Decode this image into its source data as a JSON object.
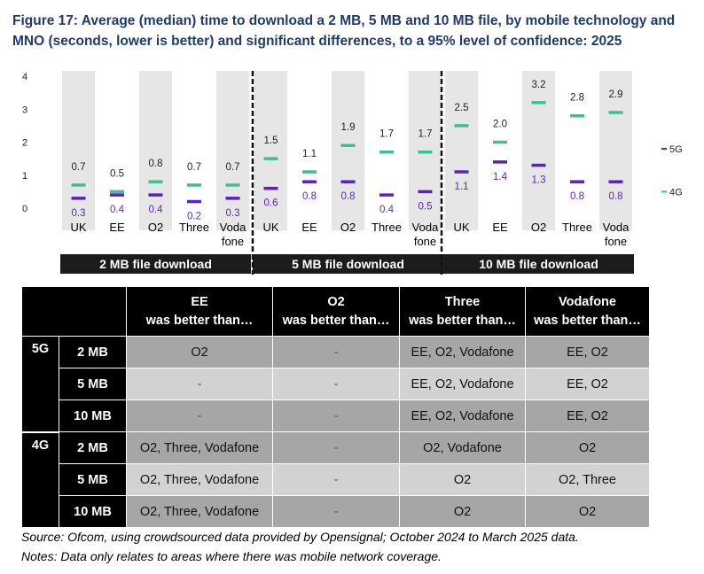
{
  "title": "Figure 17: Average (median) time to download a 2 MB, 5 MB and 10 MB file, by mobile technology and MNO (seconds, lower is better) and significant differences, to a 95% level of confidence: 2025",
  "chart_data": {
    "type": "scatter",
    "marker": "horizontal-dash",
    "y_ticks": [
      "0",
      "1",
      "2",
      "3",
      "4"
    ],
    "ylim": [
      0,
      4
    ],
    "grid": false,
    "legend_position": "right",
    "colors": {
      "5G": "#5a1fc8",
      "4G": "#3cc08e",
      "column_shade": "#e6e6e6",
      "group_bar": "#1c1c1c"
    },
    "series": [
      {
        "name": "5G",
        "color": "#5a1fc8"
      },
      {
        "name": "4G",
        "color": "#3cc08e"
      }
    ],
    "groups": [
      {
        "label": "2 MB file download",
        "operators": [
          "UK",
          "EE",
          "O2",
          "Three",
          "Voda fone"
        ],
        "values_5g": [
          0.3,
          0.4,
          0.4,
          0.2,
          0.3
        ],
        "values_4g": [
          0.7,
          0.5,
          0.8,
          0.7,
          0.7
        ]
      },
      {
        "label": "5 MB file download",
        "operators": [
          "UK",
          "EE",
          "O2",
          "Three",
          "Voda fone"
        ],
        "values_5g": [
          0.6,
          0.8,
          0.8,
          0.4,
          0.5
        ],
        "values_4g": [
          1.5,
          1.1,
          1.9,
          1.7,
          1.7
        ]
      },
      {
        "label": "10 MB file download",
        "operators": [
          "UK",
          "EE",
          "O2",
          "Three",
          "Voda fone"
        ],
        "values_5g": [
          1.1,
          1.4,
          1.3,
          0.8,
          0.8
        ],
        "values_4g": [
          2.5,
          2.0,
          3.2,
          2.8,
          2.9
        ]
      }
    ]
  },
  "table": {
    "headers": [
      {
        "line1": "EE",
        "line2": "was better than…"
      },
      {
        "line1": "O2",
        "line2": "was better than…"
      },
      {
        "line1": "Three",
        "line2": "was better than…"
      },
      {
        "line1": "Vodafone",
        "line2": "was better than…"
      }
    ],
    "rows": [
      {
        "tech": "5G",
        "size": "2 MB",
        "cells": [
          "O2",
          "-",
          "EE, O2, Vodafone",
          "EE, O2"
        ]
      },
      {
        "tech": "",
        "size": "5 MB",
        "cells": [
          "-",
          "-",
          "EE, O2, Vodafone",
          "EE, O2"
        ]
      },
      {
        "tech": "",
        "size": "10 MB",
        "cells": [
          "-",
          "-",
          "EE, O2, Vodafone",
          "EE, O2"
        ]
      },
      {
        "tech": "4G",
        "size": "2 MB",
        "cells": [
          "O2, Three, Vodafone",
          "-",
          "O2, Vodafone",
          "O2"
        ]
      },
      {
        "tech": "",
        "size": "5 MB",
        "cells": [
          "O2, Three, Vodafone",
          "-",
          "O2",
          "O2, Three"
        ]
      },
      {
        "tech": "",
        "size": "10 MB",
        "cells": [
          "O2, Three, Vodafone",
          "-",
          "O2",
          "O2"
        ]
      }
    ]
  },
  "source_lines": [
    "Source: Ofcom, using crowdsourced data provided by Opensignal; October 2024 to March 2025 data.",
    "Notes: Data only relates to areas where there was mobile network coverage."
  ]
}
